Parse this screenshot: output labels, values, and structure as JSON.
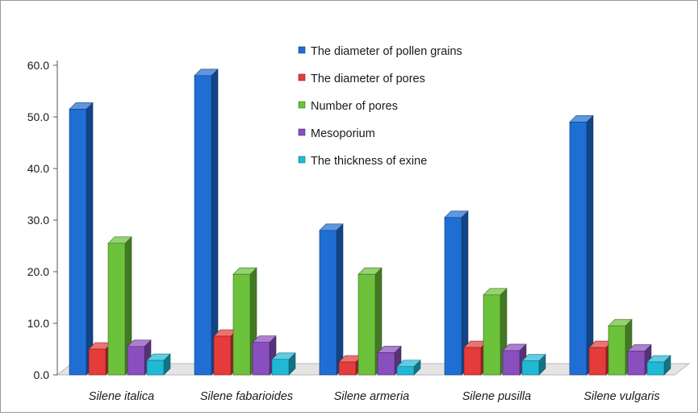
{
  "chart_data": {
    "type": "bar",
    "title": "",
    "xlabel": "",
    "ylabel": "",
    "ylim": [
      0,
      60
    ],
    "yticks": [
      "0.0",
      "10.0",
      "20.0",
      "30.0",
      "40.0",
      "50.0",
      "60.0"
    ],
    "grid": false,
    "legend_position": "top-center",
    "categories": [
      "Silene italica",
      "Silene fabarioides",
      "Silene armeria",
      "Silene pusilla",
      "Silene vulgaris"
    ],
    "series": [
      {
        "name": "The diameter of pollen grains",
        "color": "#1f6ed4",
        "values": [
          51.5,
          58.0,
          28.0,
          30.5,
          49.0
        ]
      },
      {
        "name": "The diameter of pores",
        "color": "#e53b3b",
        "values": [
          5.0,
          7.5,
          2.5,
          5.3,
          5.3
        ]
      },
      {
        "name": "Number of pores",
        "color": "#6cc23a",
        "values": [
          25.5,
          19.5,
          19.5,
          15.5,
          9.5
        ]
      },
      {
        "name": "Mesoporium",
        "color": "#8a4fbf",
        "values": [
          5.5,
          6.3,
          4.3,
          4.7,
          4.6
        ]
      },
      {
        "name": "The thickness of exine",
        "color": "#1fb9d6",
        "values": [
          2.8,
          3.0,
          1.6,
          2.7,
          2.5
        ]
      }
    ]
  }
}
